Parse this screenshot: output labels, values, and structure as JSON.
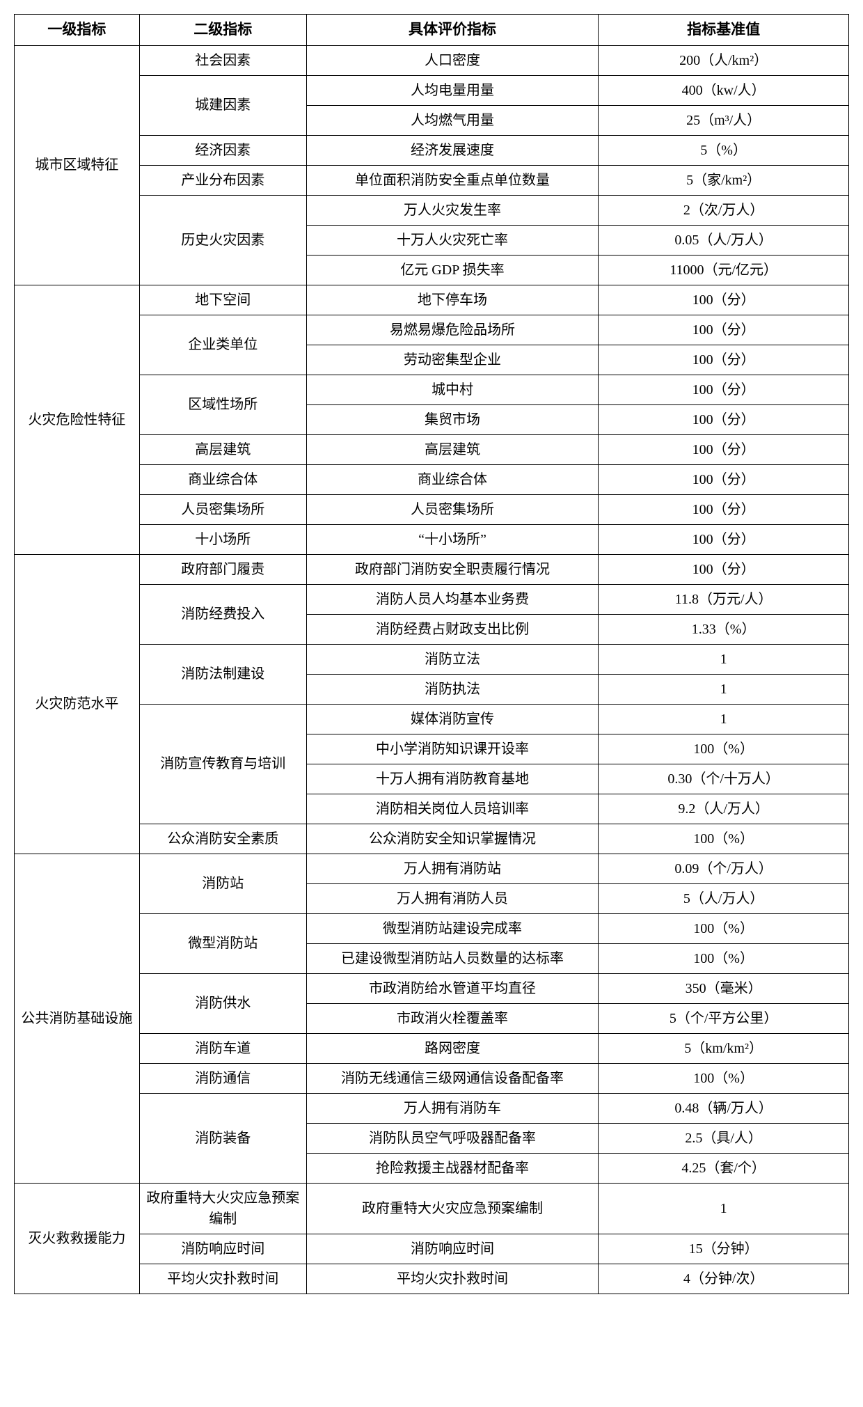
{
  "table": {
    "type": "table",
    "columns": [
      "一级指标",
      "二级指标",
      "具体评价指标",
      "指标基准值"
    ],
    "column_widths_pct": [
      15,
      20,
      35,
      30
    ],
    "border_color": "#000000",
    "background_color": "#ffffff",
    "text_color": "#000000",
    "font_family": "SimSun",
    "header_fontsize": 21,
    "cell_fontsize": 20,
    "groups": [
      {
        "lvl1": "城市区域特征",
        "sub": [
          {
            "lvl2": "社会因素",
            "rows": [
              [
                "人口密度",
                "200（人/km²）"
              ]
            ]
          },
          {
            "lvl2": "城建因素",
            "rows": [
              [
                "人均电量用量",
                "400（kw/人）"
              ],
              [
                "人均燃气用量",
                "25（m³/人）"
              ]
            ]
          },
          {
            "lvl2": "经济因素",
            "rows": [
              [
                "经济发展速度",
                "5（%）"
              ]
            ]
          },
          {
            "lvl2": "产业分布因素",
            "rows": [
              [
                "单位面积消防安全重点单位数量",
                "5（家/km²）"
              ]
            ]
          },
          {
            "lvl2": "历史火灾因素",
            "rows": [
              [
                "万人火灾发生率",
                "2（次/万人）"
              ],
              [
                "十万人火灾死亡率",
                "0.05（人/万人）"
              ],
              [
                "亿元 GDP 损失率",
                "11000（元/亿元）"
              ]
            ]
          }
        ]
      },
      {
        "lvl1": "火灾危险性特征",
        "sub": [
          {
            "lvl2": "地下空间",
            "rows": [
              [
                "地下停车场",
                "100（分）"
              ]
            ]
          },
          {
            "lvl2": "企业类单位",
            "rows": [
              [
                "易燃易爆危险品场所",
                "100（分）"
              ],
              [
                "劳动密集型企业",
                "100（分）"
              ]
            ]
          },
          {
            "lvl2": "区域性场所",
            "rows": [
              [
                "城中村",
                "100（分）"
              ],
              [
                "集贸市场",
                "100（分）"
              ]
            ]
          },
          {
            "lvl2": "高层建筑",
            "rows": [
              [
                "高层建筑",
                "100（分）"
              ]
            ]
          },
          {
            "lvl2": "商业综合体",
            "rows": [
              [
                "商业综合体",
                "100（分）"
              ]
            ]
          },
          {
            "lvl2": "人员密集场所",
            "rows": [
              [
                "人员密集场所",
                "100（分）"
              ]
            ]
          },
          {
            "lvl2": "十小场所",
            "rows": [
              [
                "“十小场所”",
                "100（分）"
              ]
            ]
          }
        ]
      },
      {
        "lvl1": "火灾防范水平",
        "sub": [
          {
            "lvl2": "政府部门履责",
            "rows": [
              [
                "政府部门消防安全职责履行情况",
                "100（分）"
              ]
            ]
          },
          {
            "lvl2": "消防经费投入",
            "rows": [
              [
                "消防人员人均基本业务费",
                "11.8（万元/人）"
              ],
              [
                "消防经费占财政支出比例",
                "1.33（%）"
              ]
            ]
          },
          {
            "lvl2": "消防法制建设",
            "rows": [
              [
                "消防立法",
                "1"
              ],
              [
                "消防执法",
                "1"
              ]
            ]
          },
          {
            "lvl2": "消防宣传教育与培训",
            "rows": [
              [
                "媒体消防宣传",
                "1"
              ],
              [
                "中小学消防知识课开设率",
                "100（%）"
              ],
              [
                "十万人拥有消防教育基地",
                "0.30（个/十万人）"
              ],
              [
                "消防相关岗位人员培训率",
                "9.2（人/万人）"
              ]
            ]
          },
          {
            "lvl2": "公众消防安全素质",
            "rows": [
              [
                "公众消防安全知识掌握情况",
                "100（%）"
              ]
            ]
          }
        ]
      },
      {
        "lvl1": "公共消防基础设施",
        "sub": [
          {
            "lvl2": "消防站",
            "rows": [
              [
                "万人拥有消防站",
                "0.09（个/万人）"
              ],
              [
                "万人拥有消防人员",
                "5（人/万人）"
              ]
            ]
          },
          {
            "lvl2": "微型消防站",
            "rows": [
              [
                "微型消防站建设完成率",
                "100（%）"
              ],
              [
                "已建设微型消防站人员数量的达标率",
                "100（%）"
              ]
            ]
          },
          {
            "lvl2": "消防供水",
            "rows": [
              [
                "市政消防给水管道平均直径",
                "350（毫米）"
              ],
              [
                "市政消火栓覆盖率",
                "5（个/平方公里）"
              ]
            ]
          },
          {
            "lvl2": "消防车道",
            "rows": [
              [
                "路网密度",
                "5（km/km²）"
              ]
            ]
          },
          {
            "lvl2": "消防通信",
            "rows": [
              [
                "消防无线通信三级网通信设备配备率",
                "100（%）"
              ]
            ]
          },
          {
            "lvl2": "消防装备",
            "rows": [
              [
                "万人拥有消防车",
                "0.48（辆/万人）"
              ],
              [
                "消防队员空气呼吸器配备率",
                "2.5（具/人）"
              ],
              [
                "抢险救援主战器材配备率",
                "4.25（套/个）"
              ]
            ]
          }
        ]
      },
      {
        "lvl1": "灭火救救援能力",
        "sub": [
          {
            "lvl2": "政府重特大火灾应急预案编制",
            "rows": [
              [
                "政府重特大火灾应急预案编制",
                "1"
              ]
            ]
          },
          {
            "lvl2": "消防响应时间",
            "rows": [
              [
                "消防响应时间",
                "15（分钟）"
              ]
            ]
          },
          {
            "lvl2": "平均火灾扑救时间",
            "rows": [
              [
                "平均火灾扑救时间",
                "4（分钟/次）"
              ]
            ]
          }
        ]
      }
    ]
  }
}
